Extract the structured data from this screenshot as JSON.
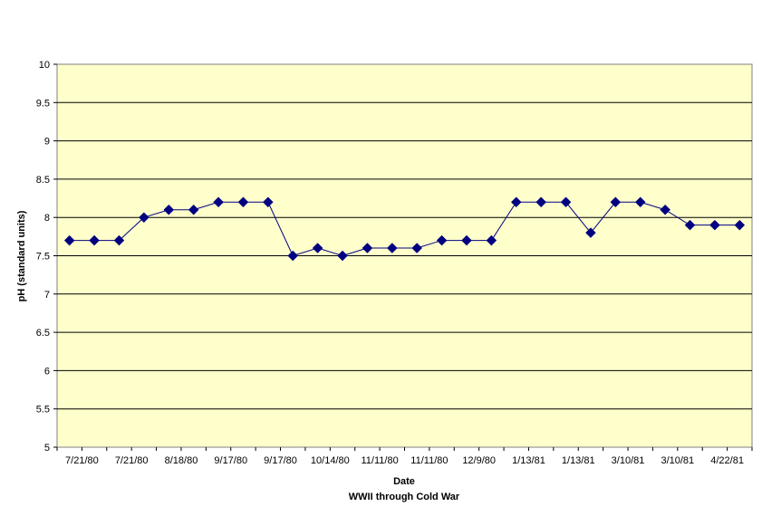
{
  "chart_data": {
    "type": "line",
    "xlabel": "Date",
    "subtitle": "WWII through Cold War",
    "ylabel": "pH (standard units)",
    "ylim": [
      5,
      10
    ],
    "yticks": [
      "10",
      "9.5",
      "9",
      "8.5",
      "8",
      "7.5",
      "7",
      "6.5",
      "6",
      "5.5",
      "5"
    ],
    "xtick_labels": [
      "7/21/80",
      "7/21/80",
      "8/18/80",
      "9/17/80",
      "9/17/80",
      "10/14/80",
      "11/11/80",
      "11/11/80",
      "12/9/80",
      "1/13/81",
      "1/13/81",
      "3/10/81",
      "3/10/81",
      "4/22/81"
    ],
    "grid": "horizontal",
    "plot_background": "#ffffcc",
    "series": [
      {
        "color": "#000080",
        "values": [
          7.7,
          7.7,
          7.7,
          8.0,
          8.1,
          8.1,
          8.2,
          8.2,
          8.2,
          7.5,
          7.6,
          7.5,
          7.6,
          7.6,
          7.6,
          7.7,
          7.7,
          7.7,
          8.2,
          8.2,
          8.2,
          7.8,
          8.2,
          8.2,
          8.1,
          7.9,
          7.9,
          7.9
        ]
      }
    ]
  }
}
